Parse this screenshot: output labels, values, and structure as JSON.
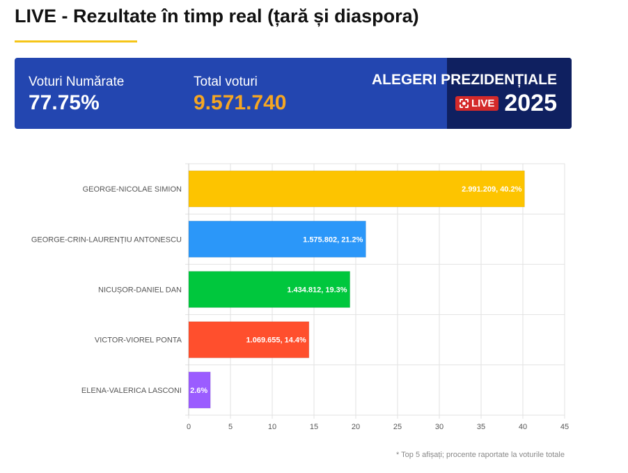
{
  "header": {
    "title": "LIVE - Rezultate în timp real (țară și diaspora)"
  },
  "banner": {
    "counted_label": "Voturi Numărate",
    "counted_value": "77.75%",
    "total_label": "Total voturi",
    "total_value": "9.571.740",
    "brand_title": "ALEGERI PREZIDENȚIALE",
    "live_badge": "LIVE",
    "year": "2025",
    "colors": {
      "accent": "#f5a623"
    }
  },
  "chart_data": {
    "type": "bar",
    "orientation": "horizontal",
    "categories": [
      "GEORGE-NICOLAE SIMION",
      "GEORGE-CRIN-LAURENȚIU ANTONESCU",
      "NICUȘOR-DANIEL DAN",
      "VICTOR-VIOREL PONTA",
      "ELENA-VALERICA LASCONI"
    ],
    "values": [
      40.2,
      21.2,
      19.3,
      14.4,
      2.6
    ],
    "data_labels": [
      "2.991.209, 40.2%",
      "1.575.802, 21.2%",
      "1.434.812, 19.3%",
      "1.069.655, 14.4%",
      "2.6%"
    ],
    "colors": [
      "#fdc400",
      "#2b97f9",
      "#00c73d",
      "#ff4f2d",
      "#9b5cff"
    ],
    "xlim": [
      0,
      45
    ],
    "xticks": [
      0,
      5,
      10,
      15,
      20,
      25,
      30,
      35,
      40,
      45
    ],
    "grid": true,
    "title": "",
    "xlabel": "",
    "ylabel": ""
  },
  "footnote": "* Top 5 afișați; procente raportate la voturile totale"
}
